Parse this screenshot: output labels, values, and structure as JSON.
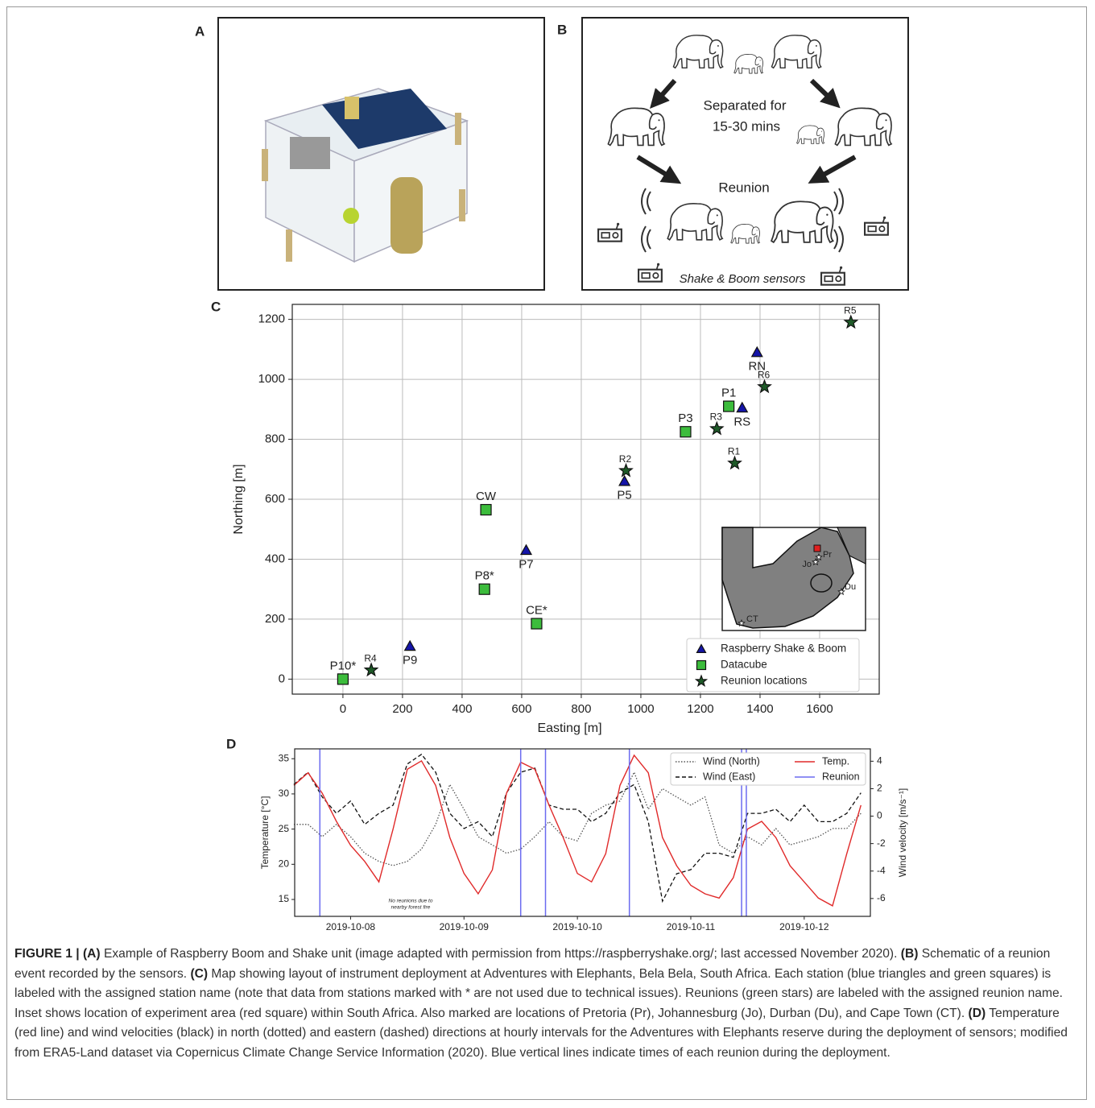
{
  "figure": {
    "panel_a": "A",
    "panel_b": "B",
    "schematic": {
      "separated_1": "Separated for",
      "separated_2": "15-30 mins",
      "reunion": "Reunion",
      "sensors": "Shake & Boom sensors"
    }
  },
  "chart_data": [
    {
      "type": "scatter",
      "panel": "C",
      "xlabel": "Easting [m]",
      "ylabel": "Northing [m]",
      "xlim": [
        -170,
        1800
      ],
      "ylim": [
        -50,
        1250
      ],
      "xticks": [
        0,
        200,
        400,
        600,
        800,
        1000,
        1200,
        1400,
        1600
      ],
      "yticks": [
        0,
        200,
        400,
        600,
        800,
        1000,
        1200
      ],
      "grid": true,
      "legend": "lower right",
      "series": [
        {
          "name": "Raspberry Shake & Boom",
          "color": "#1414a8",
          "marker": "triangle",
          "label_side": "below",
          "labels": [
            "RN",
            "RS",
            "P5",
            "P7",
            "P9"
          ],
          "x": [
            1390,
            1340,
            945,
            615,
            225
          ],
          "values": [
            1090,
            905,
            660,
            430,
            110
          ]
        },
        {
          "name": "Datacube",
          "color": "#3cbc3c",
          "marker": "square",
          "label_side": "above",
          "labels": [
            "P1",
            "P3",
            "CW",
            "P8*",
            "CE*",
            "P10*"
          ],
          "x": [
            1295,
            1150,
            480,
            475,
            650,
            0
          ],
          "values": [
            910,
            825,
            565,
            300,
            185,
            0
          ]
        },
        {
          "name": "Reunion locations",
          "color": "#1e5a28",
          "marker": "star",
          "label_side": "above-small",
          "labels": [
            "R5",
            "R6",
            "R3",
            "R1",
            "R2",
            "R4"
          ],
          "x": [
            1705,
            1415,
            1255,
            1315,
            950,
            95
          ],
          "values": [
            1190,
            975,
            835,
            720,
            695,
            30
          ]
        }
      ],
      "inset": {
        "labels": [
          "Pr",
          "Jo",
          "Du",
          "CT"
        ]
      }
    },
    {
      "type": "line",
      "panel": "D",
      "ylabel": "Temperature [°C]",
      "y2label": "Wind velocity [m/s⁻¹]",
      "xlim": [
        "2019-10-07 12:00",
        "2019-10-12 14:00"
      ],
      "xticks": [
        "2019-10-08",
        "2019-10-09",
        "2019-10-10",
        "2019-10-11",
        "2019-10-12"
      ],
      "ylim": [
        12.6,
        36.4
      ],
      "yticks": [
        15,
        20,
        25,
        30,
        35
      ],
      "y2lim": [
        -7.3,
        4.9
      ],
      "y2ticks": [
        -6,
        -4,
        -2,
        0,
        2,
        4
      ],
      "legend": "upper right",
      "x": [
        "2019-10-07 12:00",
        "2019-10-07 15:00",
        "2019-10-07 18:00",
        "2019-10-07 21:00",
        "2019-10-08 00:00",
        "2019-10-08 03:00",
        "2019-10-08 06:00",
        "2019-10-08 09:00",
        "2019-10-08 12:00",
        "2019-10-08 15:00",
        "2019-10-08 18:00",
        "2019-10-08 21:00",
        "2019-10-09 00:00",
        "2019-10-09 03:00",
        "2019-10-09 06:00",
        "2019-10-09 09:00",
        "2019-10-09 12:00",
        "2019-10-09 15:00",
        "2019-10-09 18:00",
        "2019-10-09 21:00",
        "2019-10-10 00:00",
        "2019-10-10 03:00",
        "2019-10-10 06:00",
        "2019-10-10 09:00",
        "2019-10-10 12:00",
        "2019-10-10 15:00",
        "2019-10-10 18:00",
        "2019-10-10 21:00",
        "2019-10-11 00:00",
        "2019-10-11 03:00",
        "2019-10-11 06:00",
        "2019-10-11 09:00",
        "2019-10-11 12:00",
        "2019-10-11 15:00",
        "2019-10-11 18:00",
        "2019-10-11 21:00",
        "2019-10-12 00:00",
        "2019-10-12 03:00",
        "2019-10-12 06:00",
        "2019-10-12 09:00",
        "2019-10-12 12:00"
      ],
      "series": [
        {
          "name": "Wind (North)",
          "color": "#555555",
          "style": "dotted",
          "axis": "y2",
          "values": [
            -0.6,
            -0.6,
            -1.5,
            -0.6,
            -1.5,
            -2.7,
            -3.3,
            -3.6,
            -3.3,
            -2.4,
            -0.6,
            2.3,
            0.5,
            -1.5,
            -2.1,
            -2.7,
            -2.4,
            -1.5,
            -0.4,
            -1.5,
            -1.8,
            0.2,
            0.8,
            1.1,
            3.2,
            0.5,
            2,
            1.4,
            0.8,
            1.4,
            -2.1,
            -2.7,
            -1.5,
            -2.1,
            -0.9,
            -2.1,
            -1.8,
            -1.5,
            -0.9,
            -0.9,
            0.2
          ]
        },
        {
          "name": "Wind (East)",
          "color": "#111111",
          "style": "dashed",
          "axis": "y2",
          "values": [
            2.3,
            3.2,
            1.4,
            0.2,
            1.1,
            -0.6,
            0.2,
            0.8,
            3.8,
            4.5,
            3.2,
            0.2,
            -0.9,
            -0.4,
            -1.5,
            1.7,
            3.2,
            3.5,
            0.8,
            0.5,
            0.5,
            -0.4,
            0.2,
            1.7,
            2.3,
            -0.4,
            -6.2,
            -4.2,
            -3.9,
            -2.7,
            -2.7,
            -3,
            0.2,
            0.2,
            0.5,
            -0.4,
            0.8,
            -0.4,
            -0.4,
            0.2,
            1.7
          ]
        },
        {
          "name": "Temp.",
          "color": "#e02a2a",
          "style": "solid",
          "values": [
            31.2,
            33,
            30.1,
            26.1,
            22.7,
            20.4,
            17.5,
            25,
            33.5,
            34.7,
            31.2,
            23.8,
            18.7,
            15.8,
            19.2,
            30.1,
            34.5,
            33.5,
            28.4,
            23.8,
            18.7,
            17.5,
            21.5,
            31.2,
            35.5,
            33,
            23.8,
            19.8,
            17,
            15.8,
            15.2,
            18.1,
            25,
            26.1,
            23.8,
            19.8,
            17.5,
            15.2,
            14.1,
            21.5,
            28.4
          ]
        }
      ],
      "reunions": {
        "name": "Reunion",
        "color": "#6b6bf0",
        "x": [
          "2019-10-07 17:30",
          "2019-10-09 12:00",
          "2019-10-09 17:15",
          "2019-10-10 11:00",
          "2019-10-11 10:45",
          "2019-10-11 11:45"
        ]
      },
      "annotations": [
        "No reunions due to",
        "nearby forest fire"
      ]
    }
  ],
  "caption": {
    "label": "FIGURE 1 |",
    "parts": [
      {
        "tag": "(A)",
        "text": " Example of Raspberry Boom and Shake unit (image adapted with permission from https://raspberryshake.org/; last accessed November 2020). "
      },
      {
        "tag": "(B)",
        "text": " Schematic of a reunion event recorded by the sensors. "
      },
      {
        "tag": "(C)",
        "text": " Map showing layout of instrument deployment at Adventures with Elephants, Bela Bela, South Africa. Each station (blue triangles and green squares) is labeled with the assigned station name (note that data from stations marked with * are not used due to technical issues). Reunions (green stars) are labeled with the assigned reunion name. Inset shows location of experiment area (red square) within South Africa. Also marked are locations of Pretoria (Pr), Johannesburg (Jo), Durban (Du), and Cape Town (CT). "
      },
      {
        "tag": "(D)",
        "text": " Temperature (red line) and wind velocities (black) in north (dotted) and eastern (dashed) directions at hourly intervals for the Adventures with Elephants reserve during the deployment of sensors; modified from ERA5-Land dataset via Copernicus Climate Change Service Information (2020). Blue vertical lines indicate times of each reunion during the deployment."
      }
    ]
  }
}
